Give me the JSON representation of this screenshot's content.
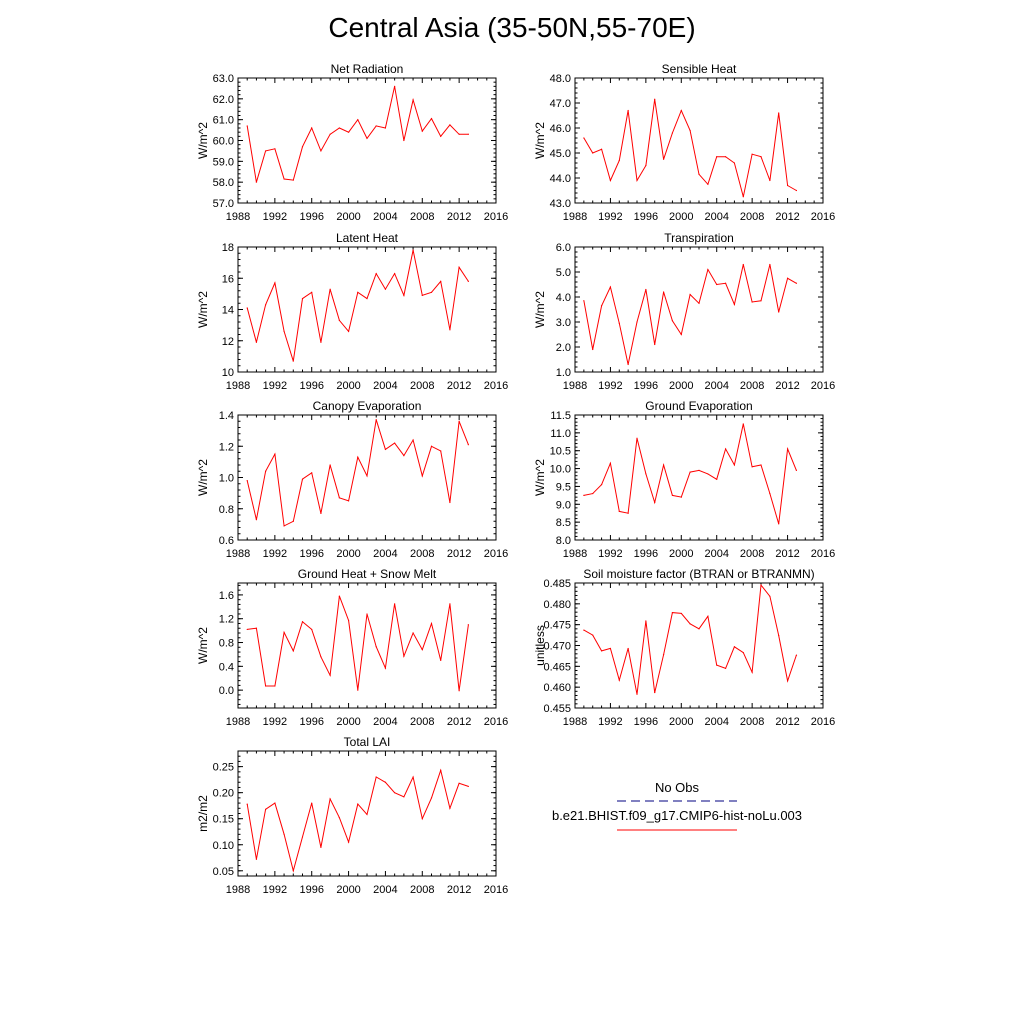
{
  "title": "Central Asia (35-50N,55-70E)",
  "line_color": "#ff0000",
  "obs_color": "#000080",
  "x_ticks": [
    1988,
    1992,
    1996,
    2000,
    2004,
    2008,
    2012,
    2016
  ],
  "legend": {
    "obs_label": "No Obs",
    "model_label": "b.e21.BHIST.f09_g17.CMIP6-hist-noLu.003"
  },
  "chart_data": [
    {
      "type": "line",
      "title": "Net Radiation",
      "ylabel": "W/m^2",
      "xlim": [
        1988,
        2016
      ],
      "ylim": [
        57.0,
        63.0
      ],
      "yticks": [
        "57.0",
        "58.0",
        "59.0",
        "60.0",
        "61.0",
        "62.0",
        "63.0"
      ],
      "x": [
        1989,
        1990,
        1991,
        1992,
        1993,
        1994,
        1995,
        1996,
        1997,
        1998,
        1999,
        2000,
        2001,
        2002,
        2003,
        2004,
        2005,
        2006,
        2007,
        2008,
        2009,
        2010,
        2011,
        2012,
        2013
      ],
      "values": [
        60.7,
        58.0,
        59.5,
        59.6,
        58.15,
        58.1,
        59.7,
        60.6,
        59.5,
        60.3,
        60.6,
        60.4,
        61.0,
        60.1,
        60.7,
        60.6,
        62.6,
        60.0,
        61.95,
        60.45,
        61.05,
        60.2,
        60.75,
        60.3,
        60.3
      ]
    },
    {
      "type": "line",
      "title": "Sensible Heat",
      "ylabel": "W/m^2",
      "xlim": [
        1988,
        2016
      ],
      "ylim": [
        43.0,
        48.0
      ],
      "yticks": [
        "43.0",
        "44.0",
        "45.0",
        "46.0",
        "47.0",
        "48.0"
      ],
      "x": [
        1989,
        1990,
        1991,
        1992,
        1993,
        1994,
        1995,
        1996,
        1997,
        1998,
        1999,
        2000,
        2001,
        2002,
        2003,
        2004,
        2005,
        2006,
        2007,
        2008,
        2009,
        2010,
        2011,
        2012,
        2013
      ],
      "values": [
        45.6,
        45.0,
        45.15,
        43.9,
        44.7,
        46.7,
        43.9,
        44.5,
        47.15,
        44.75,
        45.8,
        46.7,
        45.9,
        44.15,
        43.75,
        44.85,
        44.85,
        44.6,
        43.25,
        44.95,
        44.85,
        43.9,
        46.6,
        43.7,
        43.5
      ]
    },
    {
      "type": "line",
      "title": "Latent Heat",
      "ylabel": "W/m^2",
      "xlim": [
        1988,
        2016
      ],
      "ylim": [
        10,
        18
      ],
      "yticks": [
        "10",
        "12",
        "14",
        "16",
        "18"
      ],
      "x": [
        1989,
        1990,
        1991,
        1992,
        1993,
        1994,
        1995,
        1996,
        1997,
        1998,
        1999,
        2000,
        2001,
        2002,
        2003,
        2004,
        2005,
        2006,
        2007,
        2008,
        2009,
        2010,
        2011,
        2012,
        2013
      ],
      "values": [
        14.1,
        11.9,
        14.3,
        15.7,
        12.6,
        10.7,
        14.7,
        15.1,
        11.9,
        15.3,
        13.3,
        12.6,
        15.1,
        14.7,
        16.3,
        15.3,
        16.3,
        14.9,
        17.8,
        14.9,
        15.1,
        15.8,
        12.7,
        16.7,
        15.8
      ]
    },
    {
      "type": "line",
      "title": "Transpiration",
      "ylabel": "W/m^2",
      "xlim": [
        1988,
        2016
      ],
      "ylim": [
        1.0,
        6.0
      ],
      "yticks": [
        "1.0",
        "2.0",
        "3.0",
        "4.0",
        "5.0",
        "6.0"
      ],
      "x": [
        1989,
        1990,
        1991,
        1992,
        1993,
        1994,
        1995,
        1996,
        1997,
        1998,
        1999,
        2000,
        2001,
        2002,
        2003,
        2004,
        2005,
        2006,
        2007,
        2008,
        2009,
        2010,
        2011,
        2012,
        2013
      ],
      "values": [
        3.85,
        1.9,
        3.65,
        4.4,
        2.95,
        1.3,
        3.0,
        4.3,
        2.1,
        4.2,
        3.05,
        2.5,
        4.1,
        3.75,
        5.1,
        4.5,
        4.55,
        3.7,
        5.3,
        3.8,
        3.85,
        5.3,
        3.4,
        4.75,
        4.55
      ]
    },
    {
      "type": "line",
      "title": "Canopy Evaporation",
      "ylabel": "W/m^2",
      "xlim": [
        1988,
        2016
      ],
      "ylim": [
        0.6,
        1.4
      ],
      "yticks": [
        "0.6",
        "0.8",
        "1.0",
        "1.2",
        "1.4"
      ],
      "x": [
        1989,
        1990,
        1991,
        1992,
        1993,
        1994,
        1995,
        1996,
        1997,
        1998,
        1999,
        2000,
        2001,
        2002,
        2003,
        2004,
        2005,
        2006,
        2007,
        2008,
        2009,
        2010,
        2011,
        2012,
        2013
      ],
      "values": [
        0.98,
        0.73,
        1.04,
        1.15,
        0.69,
        0.72,
        0.99,
        1.03,
        0.77,
        1.08,
        0.87,
        0.85,
        1.13,
        1.01,
        1.37,
        1.18,
        1.22,
        1.14,
        1.24,
        1.01,
        1.2,
        1.17,
        0.84,
        1.36,
        1.21
      ]
    },
    {
      "type": "line",
      "title": "Ground Evaporation",
      "ylabel": "W/m^2",
      "xlim": [
        1988,
        2016
      ],
      "ylim": [
        8.0,
        11.5
      ],
      "yticks": [
        "8.0",
        "8.5",
        "9.0",
        "9.5",
        "10.0",
        "10.5",
        "11.0",
        "11.5"
      ],
      "x": [
        1989,
        1990,
        1991,
        1992,
        1993,
        1994,
        1995,
        1996,
        1997,
        1998,
        1999,
        2000,
        2001,
        2002,
        2003,
        2004,
        2005,
        2006,
        2007,
        2008,
        2009,
        2010,
        2011,
        2012,
        2013
      ],
      "values": [
        9.25,
        9.3,
        9.55,
        10.15,
        8.8,
        8.75,
        10.85,
        9.85,
        9.05,
        10.1,
        9.25,
        9.2,
        9.9,
        9.95,
        9.85,
        9.7,
        10.55,
        10.1,
        11.25,
        10.05,
        10.1,
        9.3,
        8.45,
        10.55,
        9.95
      ]
    },
    {
      "type": "line",
      "title": "Ground Heat + Snow Melt",
      "ylabel": "W/m^2",
      "xlim": [
        1988,
        2016
      ],
      "ylim": [
        -0.3,
        1.8
      ],
      "yticks": [
        "0.0",
        "0.4",
        "0.8",
        "1.2",
        "1.6"
      ],
      "ytick_values": [
        0.0,
        0.4,
        0.8,
        1.2,
        1.6
      ],
      "x": [
        1989,
        1990,
        1991,
        1992,
        1993,
        1994,
        1995,
        1996,
        1997,
        1998,
        1999,
        2000,
        2001,
        2002,
        2003,
        2004,
        2005,
        2006,
        2007,
        2008,
        2009,
        2010,
        2011,
        2012,
        2013
      ],
      "values": [
        1.02,
        1.04,
        0.07,
        0.07,
        0.97,
        0.66,
        1.15,
        1.02,
        0.56,
        0.25,
        1.58,
        1.17,
        0.0,
        1.28,
        0.73,
        0.37,
        1.45,
        0.57,
        0.96,
        0.68,
        1.12,
        0.5,
        1.45,
        -0.01,
        1.1
      ]
    },
    {
      "type": "line",
      "title": "Soil moisture factor (BTRAN or BTRANMN)",
      "ylabel": "unitless",
      "xlim": [
        1988,
        2016
      ],
      "ylim": [
        0.455,
        0.485
      ],
      "yticks": [
        "0.455",
        "0.460",
        "0.465",
        "0.470",
        "0.475",
        "0.480",
        "0.485"
      ],
      "x": [
        1989,
        1990,
        1991,
        1992,
        1993,
        1994,
        1995,
        1996,
        1997,
        1998,
        1999,
        2000,
        2001,
        2002,
        2003,
        2004,
        2005,
        2006,
        2007,
        2008,
        2009,
        2010,
        2011,
        2012,
        2013
      ],
      "values": [
        0.4737,
        0.4725,
        0.4687,
        0.4693,
        0.4617,
        0.4693,
        0.4583,
        0.4759,
        0.4587,
        0.4678,
        0.4779,
        0.4777,
        0.4752,
        0.474,
        0.477,
        0.4653,
        0.4645,
        0.4697,
        0.4683,
        0.4636,
        0.4845,
        0.4818,
        0.4724,
        0.4615,
        0.4677
      ]
    },
    {
      "type": "line",
      "title": "Total LAI",
      "ylabel": "m2/m2",
      "xlim": [
        1988,
        2016
      ],
      "ylim": [
        0.04,
        0.28
      ],
      "yticks": [
        "0.05",
        "0.10",
        "0.15",
        "0.20",
        "0.25"
      ],
      "ytick_values": [
        0.05,
        0.1,
        0.15,
        0.2,
        0.25
      ],
      "x": [
        1989,
        1990,
        1991,
        1992,
        1993,
        1994,
        1995,
        1996,
        1997,
        1998,
        1999,
        2000,
        2001,
        2002,
        2003,
        2004,
        2005,
        2006,
        2007,
        2008,
        2009,
        2010,
        2011,
        2012,
        2013
      ],
      "values": [
        0.178,
        0.072,
        0.168,
        0.18,
        0.12,
        0.05,
        0.115,
        0.18,
        0.095,
        0.188,
        0.152,
        0.105,
        0.178,
        0.158,
        0.23,
        0.22,
        0.2,
        0.192,
        0.23,
        0.15,
        0.19,
        0.243,
        0.17,
        0.218,
        0.212
      ]
    }
  ]
}
